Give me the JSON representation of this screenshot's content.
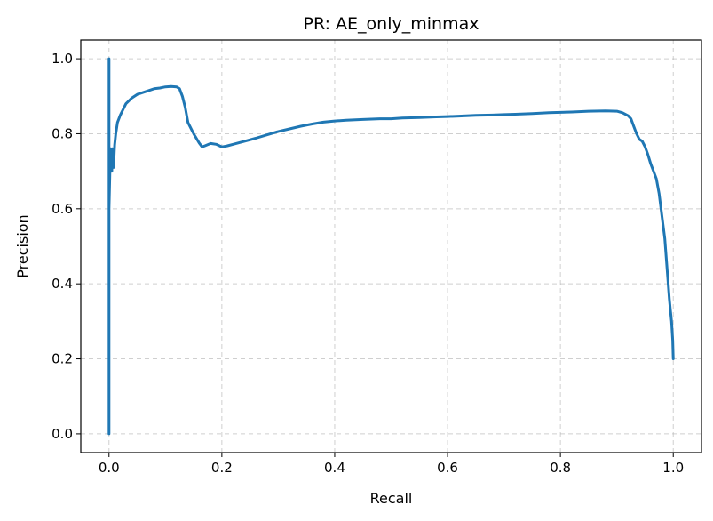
{
  "chart_data": {
    "type": "line",
    "title": "PR: AE_only_minmax",
    "xlabel": "Recall",
    "ylabel": "Precision",
    "xlim": [
      -0.05,
      1.05
    ],
    "ylim": [
      -0.05,
      1.05
    ],
    "xticks": [
      0.0,
      0.2,
      0.4,
      0.6,
      0.8,
      1.0
    ],
    "yticks": [
      0.0,
      0.2,
      0.4,
      0.6,
      0.8,
      1.0
    ],
    "xtick_labels": [
      "0.0",
      "0.2",
      "0.4",
      "0.6",
      "0.8",
      "1.0"
    ],
    "ytick_labels": [
      "0.0",
      "0.2",
      "0.4",
      "0.6",
      "0.8",
      "1.0"
    ],
    "grid": true,
    "line_color": "#1f77b4",
    "series": [
      {
        "x": [
          0.0,
          0.0,
          0.0,
          0.0,
          0.0,
          0.002,
          0.003,
          0.004,
          0.005,
          0.006,
          0.008,
          0.01,
          0.012,
          0.015,
          0.02,
          0.025,
          0.03,
          0.04,
          0.05,
          0.06,
          0.07,
          0.08,
          0.09,
          0.1,
          0.11,
          0.12,
          0.125,
          0.13,
          0.135,
          0.14,
          0.15,
          0.16,
          0.165,
          0.17,
          0.18,
          0.19,
          0.2,
          0.21,
          0.22,
          0.24,
          0.26,
          0.28,
          0.3,
          0.32,
          0.34,
          0.36,
          0.38,
          0.4,
          0.42,
          0.45,
          0.48,
          0.5,
          0.52,
          0.55,
          0.58,
          0.6,
          0.62,
          0.65,
          0.68,
          0.7,
          0.72,
          0.75,
          0.78,
          0.8,
          0.82,
          0.85,
          0.88,
          0.9,
          0.91,
          0.92,
          0.925,
          0.93,
          0.935,
          0.94,
          0.945,
          0.95,
          0.955,
          0.96,
          0.965,
          0.97,
          0.975,
          0.98,
          0.985,
          0.99,
          0.993,
          0.995,
          0.997,
          0.999,
          1.0
        ],
        "y": [
          0.0,
          0.02,
          0.35,
          1.0,
          0.6,
          0.72,
          0.76,
          0.75,
          0.7,
          0.76,
          0.71,
          0.77,
          0.8,
          0.83,
          0.85,
          0.865,
          0.88,
          0.895,
          0.905,
          0.91,
          0.915,
          0.92,
          0.922,
          0.925,
          0.926,
          0.925,
          0.92,
          0.9,
          0.87,
          0.83,
          0.8,
          0.775,
          0.765,
          0.768,
          0.774,
          0.772,
          0.765,
          0.768,
          0.772,
          0.78,
          0.788,
          0.797,
          0.806,
          0.813,
          0.82,
          0.826,
          0.831,
          0.834,
          0.836,
          0.838,
          0.84,
          0.84,
          0.842,
          0.843,
          0.845,
          0.846,
          0.847,
          0.849,
          0.85,
          0.851,
          0.852,
          0.854,
          0.856,
          0.857,
          0.858,
          0.86,
          0.861,
          0.86,
          0.856,
          0.848,
          0.84,
          0.82,
          0.8,
          0.785,
          0.78,
          0.765,
          0.745,
          0.72,
          0.7,
          0.68,
          0.64,
          0.58,
          0.52,
          0.42,
          0.36,
          0.33,
          0.3,
          0.25,
          0.2
        ]
      }
    ]
  }
}
